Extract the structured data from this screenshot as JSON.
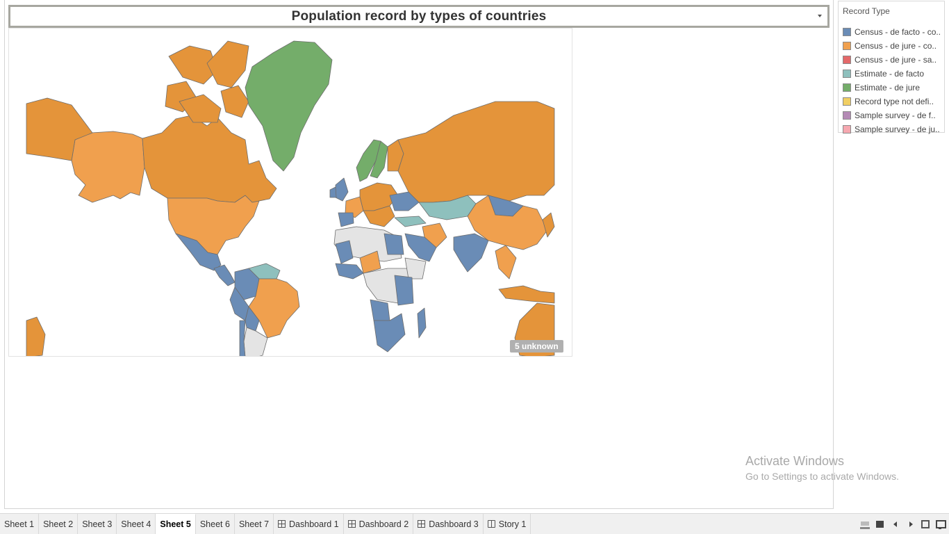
{
  "worksheet": {
    "title": "Population record by types of countries"
  },
  "map": {
    "unknown_badge": "5 unknown",
    "colors": {
      "census_de_facto": "#6a8cb6",
      "census_de_jure": "#e4943a",
      "census_de_jure_light": "#f0a04e",
      "estimate_de_facto": "#8ec0bd",
      "estimate_de_jure": "#74ad6a",
      "no_data": "#e4e4e4",
      "border": "#6d6d6d"
    }
  },
  "legend": {
    "title": "Record Type",
    "items": [
      {
        "label": "Census - de facto - co..",
        "color": "#6a8cb6"
      },
      {
        "label": "Census - de jure - co..",
        "color": "#f0a04e"
      },
      {
        "label": "Census - de jure - sa..",
        "color": "#e4696a"
      },
      {
        "label": "Estimate - de facto",
        "color": "#8ec0bd"
      },
      {
        "label": "Estimate - de jure",
        "color": "#74ad6a"
      },
      {
        "label": "Record type not defi..",
        "color": "#f1cf63"
      },
      {
        "label": "Sample survey - de f..",
        "color": "#b48ab5"
      },
      {
        "label": "Sample survey - de ju..",
        "color": "#f6a8b0"
      }
    ]
  },
  "watermark": {
    "title": "Activate Windows",
    "subtitle": "Go to Settings to activate Windows."
  },
  "tabs": [
    {
      "label": "Sheet 1",
      "icon": ""
    },
    {
      "label": "Sheet 2",
      "icon": ""
    },
    {
      "label": "Sheet 3",
      "icon": ""
    },
    {
      "label": "Sheet 4",
      "icon": ""
    },
    {
      "label": "Sheet 5",
      "icon": "",
      "active": true
    },
    {
      "label": "Sheet 6",
      "icon": ""
    },
    {
      "label": "Sheet 7",
      "icon": ""
    },
    {
      "label": "Dashboard 1",
      "icon": "dashboard-icon"
    },
    {
      "label": "Dashboard 2",
      "icon": "dashboard-icon"
    },
    {
      "label": "Dashboard 3",
      "icon": "dashboard-icon"
    },
    {
      "label": "Story 1",
      "icon": "story-icon"
    }
  ]
}
